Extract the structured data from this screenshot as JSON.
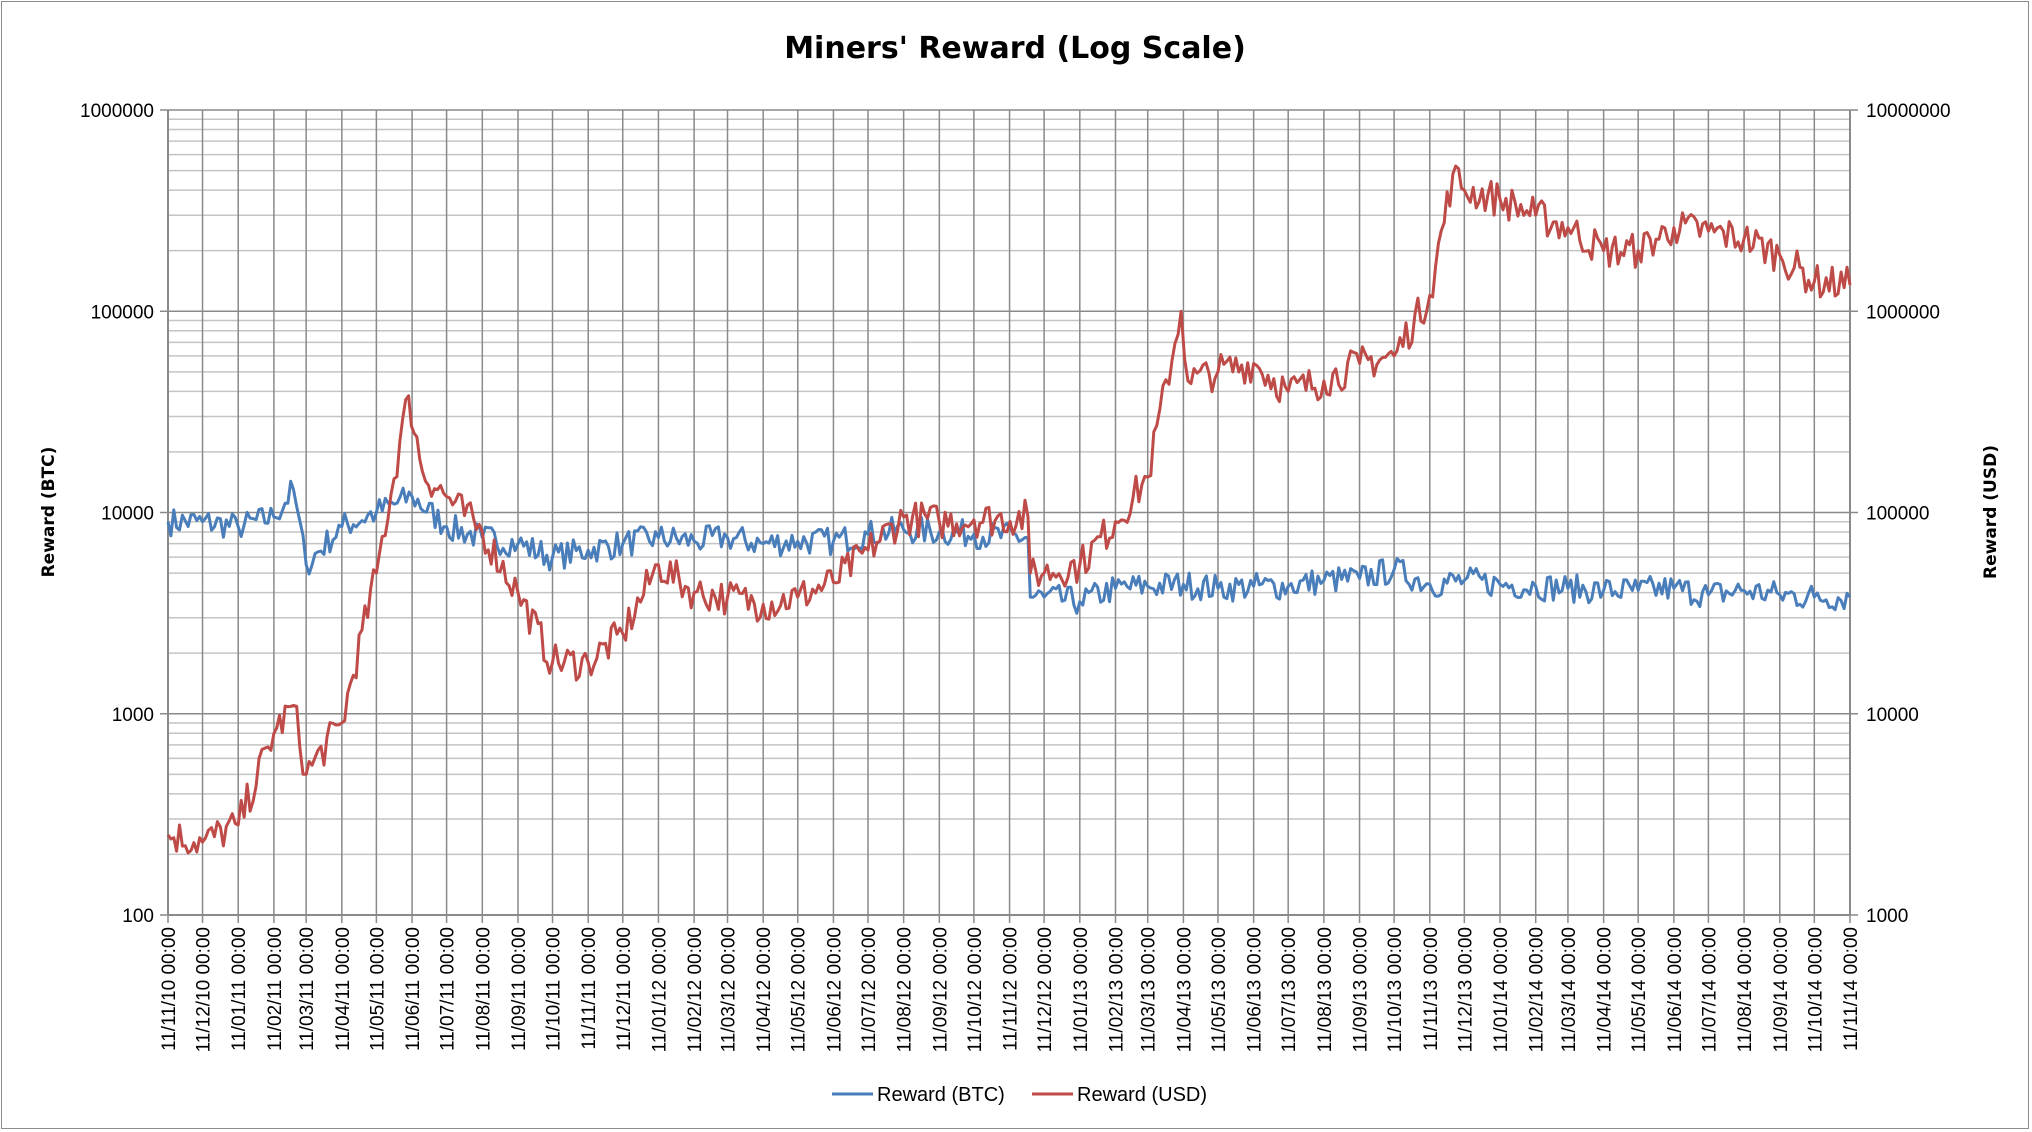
{
  "chart_data": {
    "type": "line",
    "title": "Miners' Reward (Log Scale)",
    "ylabel": "Reward (BTC)",
    "y2label": "Reward (USD)",
    "yscale": "log",
    "ylim": [
      100,
      1000000
    ],
    "y2lim": [
      1000,
      10000000
    ],
    "yticks": [
      "100",
      "1000",
      "10000",
      "100000",
      "1000000"
    ],
    "y2ticks": [
      "1000",
      "10000",
      "100000",
      "1000000",
      "10000000"
    ],
    "xlim": [
      "2010-11-11",
      "2014-11-11"
    ],
    "xticks": [
      "11/11/10 00:00",
      "11/12/10 00:00",
      "11/01/11 00:00",
      "11/02/11 00:00",
      "11/03/11 00:00",
      "11/04/11 00:00",
      "11/05/11 00:00",
      "11/06/11 00:00",
      "11/07/11 00:00",
      "11/08/11 00:00",
      "11/09/11 00:00",
      "11/10/11 00:00",
      "11/11/11 00:00",
      "11/12/11 00:00",
      "11/01/12 00:00",
      "11/02/12 00:00",
      "11/03/12 00:00",
      "11/04/12 00:00",
      "11/05/12 00:00",
      "11/06/12 00:00",
      "11/07/12 00:00",
      "11/08/12 00:00",
      "11/09/12 00:00",
      "11/10/12 00:00",
      "11/11/12 00:00",
      "11/12/12 00:00",
      "11/01/13 00:00",
      "11/02/13 00:00",
      "11/03/13 00:00",
      "11/04/13 00:00",
      "11/05/13 00:00",
      "11/06/13 00:00",
      "11/07/13 00:00",
      "11/08/13 00:00",
      "11/09/13 00:00",
      "11/10/13 00:00",
      "11/11/13 00:00",
      "11/12/13 00:00",
      "11/01/14 00:00",
      "11/02/14 00:00",
      "11/03/14 00:00",
      "11/04/14 00:00",
      "11/05/14 00:00",
      "11/06/14 00:00",
      "11/07/14 00:00",
      "11/08/14 00:00",
      "11/09/14 00:00",
      "11/10/14 00:00",
      "11/11/14 00:00"
    ],
    "grid": {
      "major": true,
      "minor": true,
      "vertical": true
    },
    "legend": "bottom",
    "series": [
      {
        "name": "Reward (BTC)",
        "axis": "left",
        "color": "#4a7ebb",
        "points": [
          [
            "2010-11-11",
            9000
          ],
          [
            "2010-12-11",
            9000
          ],
          [
            "2011-01-11",
            8500
          ],
          [
            "2011-02-11",
            9500
          ],
          [
            "2011-02-28",
            13000
          ],
          [
            "2011-03-11",
            5500
          ],
          [
            "2011-04-11",
            8500
          ],
          [
            "2011-05-11",
            10000
          ],
          [
            "2011-06-11",
            12000
          ],
          [
            "2011-07-11",
            8500
          ],
          [
            "2011-08-11",
            7500
          ],
          [
            "2011-09-11",
            7000
          ],
          [
            "2011-10-11",
            6000
          ],
          [
            "2011-11-11",
            6500
          ],
          [
            "2011-12-11",
            7000
          ],
          [
            "2012-01-11",
            7500
          ],
          [
            "2012-02-11",
            7200
          ],
          [
            "2012-03-11",
            7500
          ],
          [
            "2012-04-11",
            7000
          ],
          [
            "2012-05-11",
            7200
          ],
          [
            "2012-06-11",
            7200
          ],
          [
            "2012-07-11",
            7800
          ],
          [
            "2012-08-11",
            8200
          ],
          [
            "2012-09-11",
            8000
          ],
          [
            "2012-10-11",
            7800
          ],
          [
            "2012-11-27",
            7500
          ],
          [
            "2012-11-29",
            3800
          ],
          [
            "2012-12-11",
            3800
          ],
          [
            "2013-01-11",
            3600
          ],
          [
            "2013-02-11",
            4200
          ],
          [
            "2013-03-11",
            4300
          ],
          [
            "2013-04-11",
            4400
          ],
          [
            "2013-05-11",
            4200
          ],
          [
            "2013-06-11",
            4300
          ],
          [
            "2013-07-11",
            4300
          ],
          [
            "2013-08-11",
            4600
          ],
          [
            "2013-09-11",
            4700
          ],
          [
            "2013-10-11",
            5200
          ],
          [
            "2013-11-11",
            4400
          ],
          [
            "2013-12-11",
            4600
          ],
          [
            "2014-01-11",
            4400
          ],
          [
            "2014-02-11",
            4300
          ],
          [
            "2014-03-11",
            4200
          ],
          [
            "2014-04-11",
            4100
          ],
          [
            "2014-05-11",
            4100
          ],
          [
            "2014-06-11",
            4200
          ],
          [
            "2014-07-11",
            3900
          ],
          [
            "2014-08-11",
            4100
          ],
          [
            "2014-09-11",
            3900
          ],
          [
            "2014-10-11",
            3800
          ],
          [
            "2014-11-11",
            3800
          ]
        ]
      },
      {
        "name": "Reward (USD)",
        "axis": "right",
        "color": "#be4b48",
        "points": [
          [
            "2010-11-11",
            2500
          ],
          [
            "2010-12-11",
            2300
          ],
          [
            "2011-01-11",
            2800
          ],
          [
            "2011-02-11",
            8000
          ],
          [
            "2011-02-28",
            11000
          ],
          [
            "2011-03-11",
            5000
          ],
          [
            "2011-04-11",
            9000
          ],
          [
            "2011-05-11",
            50000
          ],
          [
            "2011-06-08",
            380000
          ],
          [
            "2011-06-20",
            160000
          ],
          [
            "2011-07-11",
            120000
          ],
          [
            "2011-08-11",
            80000
          ],
          [
            "2011-09-11",
            40000
          ],
          [
            "2011-10-11",
            18000
          ],
          [
            "2011-11-11",
            18000
          ],
          [
            "2011-12-11",
            25000
          ],
          [
            "2012-01-11",
            55000
          ],
          [
            "2012-02-11",
            40000
          ],
          [
            "2012-03-11",
            38000
          ],
          [
            "2012-04-11",
            35000
          ],
          [
            "2012-05-11",
            38000
          ],
          [
            "2012-06-11",
            45000
          ],
          [
            "2012-07-11",
            65000
          ],
          [
            "2012-08-11",
            95000
          ],
          [
            "2012-09-11",
            90000
          ],
          [
            "2012-10-11",
            92000
          ],
          [
            "2012-11-27",
            95000
          ],
          [
            "2012-11-29",
            50000
          ],
          [
            "2012-12-11",
            50000
          ],
          [
            "2013-01-11",
            55000
          ],
          [
            "2013-02-11",
            90000
          ],
          [
            "2013-03-11",
            150000
          ],
          [
            "2013-04-09",
            1000000
          ],
          [
            "2013-04-15",
            450000
          ],
          [
            "2013-05-11",
            500000
          ],
          [
            "2013-06-11",
            550000
          ],
          [
            "2013-07-11",
            400000
          ],
          [
            "2013-08-11",
            450000
          ],
          [
            "2013-09-11",
            550000
          ],
          [
            "2013-10-11",
            600000
          ],
          [
            "2013-11-11",
            1200000
          ],
          [
            "2013-12-01",
            4800000
          ],
          [
            "2013-12-11",
            4000000
          ],
          [
            "2014-01-11",
            3600000
          ],
          [
            "2014-02-11",
            3000000
          ],
          [
            "2014-03-11",
            2600000
          ],
          [
            "2014-04-11",
            2000000
          ],
          [
            "2014-05-11",
            2000000
          ],
          [
            "2014-06-11",
            2600000
          ],
          [
            "2014-07-11",
            2500000
          ],
          [
            "2014-08-11",
            2300000
          ],
          [
            "2014-09-11",
            1900000
          ],
          [
            "2014-10-11",
            1400000
          ],
          [
            "2014-11-11",
            1350000
          ]
        ]
      }
    ]
  }
}
